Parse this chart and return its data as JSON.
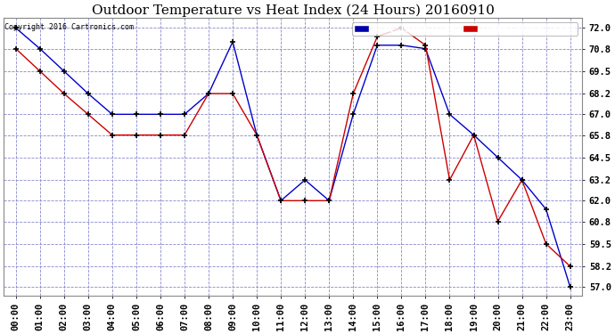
{
  "title": "Outdoor Temperature vs Heat Index (24 Hours) 20160910",
  "copyright": "Copyright 2016 Cartronics.com",
  "x_labels": [
    "00:00",
    "01:00",
    "02:00",
    "03:00",
    "04:00",
    "05:00",
    "06:00",
    "07:00",
    "08:00",
    "09:00",
    "10:00",
    "11:00",
    "12:00",
    "13:00",
    "14:00",
    "15:00",
    "16:00",
    "17:00",
    "18:00",
    "19:00",
    "20:00",
    "21:00",
    "22:00",
    "23:00"
  ],
  "heat_index": [
    72.0,
    70.8,
    69.5,
    68.2,
    67.0,
    67.0,
    67.0,
    67.0,
    68.2,
    71.2,
    65.8,
    62.0,
    63.2,
    62.0,
    67.0,
    71.0,
    71.0,
    70.8,
    67.0,
    65.8,
    64.5,
    63.2,
    61.5,
    57.0
  ],
  "temperature": [
    70.8,
    69.5,
    68.2,
    67.0,
    65.8,
    65.8,
    65.8,
    65.8,
    68.2,
    68.2,
    65.8,
    62.0,
    62.0,
    62.0,
    68.2,
    71.5,
    72.0,
    71.0,
    63.2,
    65.8,
    60.8,
    63.2,
    59.5,
    58.2
  ],
  "ylim_min": 56.5,
  "ylim_max": 72.6,
  "yticks": [
    57.0,
    58.2,
    59.5,
    60.8,
    62.0,
    63.2,
    64.5,
    65.8,
    67.0,
    68.2,
    69.5,
    70.8,
    72.0
  ],
  "heat_index_color": "#0000cc",
  "temperature_color": "#cc0000",
  "background_color": "#ffffff",
  "plot_bg_color": "#ffffff",
  "grid_color": "#8888cc",
  "title_fontsize": 11,
  "tick_fontsize": 7.5,
  "legend_hi_bg": "#0000aa",
  "legend_temp_bg": "#cc0000",
  "figwidth": 6.9,
  "figheight": 3.75,
  "dpi": 100
}
